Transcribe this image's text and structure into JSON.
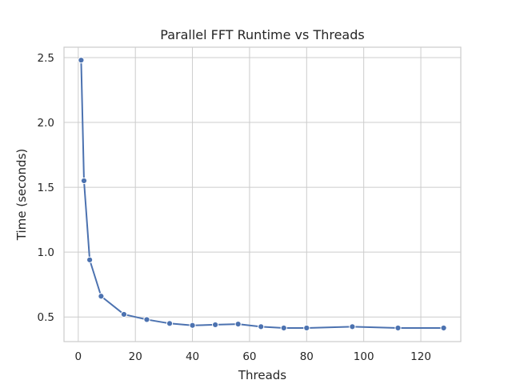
{
  "chart_data": {
    "type": "line",
    "title": "Parallel FFT Runtime vs Threads",
    "xlabel": "Threads",
    "ylabel": "Time (seconds)",
    "xlim": [
      -5,
      134
    ],
    "ylim": [
      0.31,
      2.58
    ],
    "xticks": [
      0,
      20,
      40,
      60,
      80,
      100,
      120
    ],
    "yticks": [
      0.5,
      1.0,
      1.5,
      2.0,
      2.5
    ],
    "ytick_labels": [
      "0.5",
      "1.0",
      "1.5",
      "2.0",
      "2.5"
    ],
    "grid": true,
    "series": [
      {
        "color": "#4c72b0",
        "marker": "circle",
        "x": [
          1,
          2,
          4,
          8,
          16,
          24,
          32,
          40,
          48,
          56,
          64,
          72,
          80,
          96,
          112,
          128
        ],
        "y": [
          2.48,
          1.55,
          0.94,
          0.66,
          0.52,
          0.48,
          0.45,
          0.435,
          0.44,
          0.445,
          0.425,
          0.415,
          0.415,
          0.425,
          0.415,
          0.415
        ]
      }
    ]
  }
}
